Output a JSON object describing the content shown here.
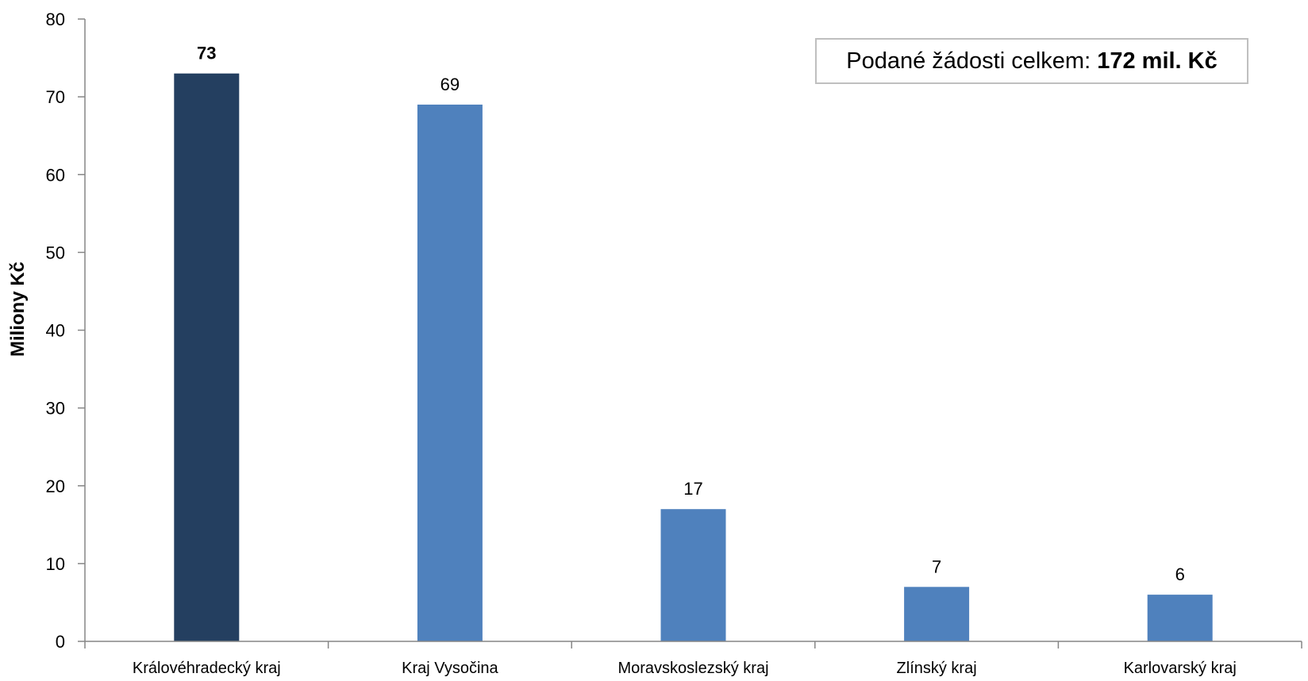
{
  "chart_data": {
    "type": "bar",
    "title": "",
    "xlabel": "",
    "ylabel": "Miliony Kč",
    "ylim": [
      0,
      80
    ],
    "yticks": [
      0,
      10,
      20,
      30,
      40,
      50,
      60,
      70,
      80
    ],
    "grid": false,
    "categories": [
      "Královéhradecký kraj",
      "Kraj Vysočina",
      "Moravskoslezský kraj",
      "Zlínský kraj",
      "Karlovarský kraj"
    ],
    "values": [
      73,
      69,
      17,
      7,
      6
    ],
    "value_labels": [
      "73",
      "69",
      "17",
      "7",
      "6"
    ],
    "bar_colors": [
      "#243f60",
      "#4f81bd",
      "#4f81bd",
      "#4f81bd",
      "#4f81bd"
    ],
    "label_bold": [
      true,
      false,
      false,
      false,
      false
    ],
    "annotation": {
      "prefix": "Podané žádosti celkem: ",
      "value": "172 mil. Kč"
    }
  },
  "colors": {
    "highlight_bar": "#243f60",
    "bar": "#4f81bd",
    "axis": "#868686",
    "text": "#000000",
    "annotation_border": "#bfbfbf"
  }
}
